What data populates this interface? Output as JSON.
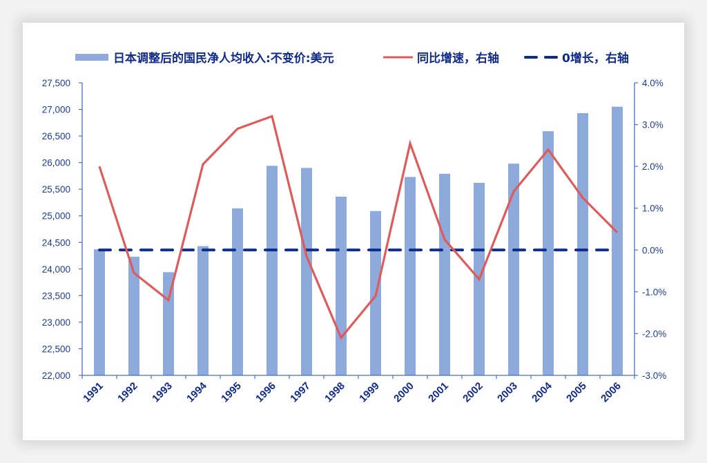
{
  "colors": {
    "bar": "#8eaadb",
    "growth_line": "#e05a5a",
    "zero_line": "#0a2d8c",
    "axis": "#4a6cc4",
    "text": "#0f2a8a",
    "background": "#f2f2f2",
    "card": "#ffffff"
  },
  "legend": {
    "items": [
      {
        "label": "日本调整后的国民净人均收入:不变价:美元",
        "type": "bar"
      },
      {
        "label": "同比增速，右轴",
        "type": "line"
      },
      {
        "label": "0增长，右轴",
        "type": "dashed"
      }
    ]
  },
  "axes": {
    "left_ticks": [
      "27,500",
      "27,000",
      "26,500",
      "26,000",
      "25,500",
      "25,000",
      "24,500",
      "24,000",
      "23,500",
      "23,000",
      "22,500",
      "22,000"
    ],
    "right_ticks": [
      "4.0%",
      "3.0%",
      "2.0%",
      "1.0%",
      "0.0%",
      "-1.0%",
      "-2.0%",
      "-3.0%"
    ],
    "x_ticks": [
      "1991",
      "1992",
      "1993",
      "1994",
      "1995",
      "1996",
      "1997",
      "1998",
      "1999",
      "2000",
      "2001",
      "2002",
      "2003",
      "2004",
      "2005",
      "2006"
    ]
  },
  "chart_data": {
    "type": "bar",
    "title": "",
    "xlabel": "",
    "ylabel": "",
    "categories": [
      "1991",
      "1992",
      "1993",
      "1994",
      "1995",
      "1996",
      "1997",
      "1998",
      "1999",
      "2000",
      "2001",
      "2002",
      "2003",
      "2004",
      "2005",
      "2006"
    ],
    "series": [
      {
        "name": "日本调整后的国民净人均收入:不变价:美元",
        "type": "bar",
        "axis": "left",
        "values": [
          24370,
          24230,
          23940,
          24430,
          25140,
          25940,
          25900,
          25360,
          25090,
          25730,
          25790,
          25620,
          25980,
          26590,
          26930,
          27050
        ]
      },
      {
        "name": "同比增速，右轴",
        "type": "line",
        "axis": "right",
        "unit": "%",
        "values": [
          2.0,
          -0.55,
          -1.2,
          2.05,
          2.9,
          3.2,
          -0.15,
          -2.1,
          -1.1,
          2.55,
          0.25,
          -0.7,
          1.4,
          2.4,
          1.25,
          0.42
        ]
      },
      {
        "name": "0增长，右轴",
        "type": "line",
        "style": "dashed",
        "axis": "right",
        "unit": "%",
        "values": [
          0,
          0,
          0,
          0,
          0,
          0,
          0,
          0,
          0,
          0,
          0,
          0,
          0,
          0,
          0,
          0
        ]
      }
    ],
    "ylim": [
      22000,
      27500
    ],
    "y2lim": [
      -3.0,
      4.0
    ],
    "grid": false,
    "legend_position": "top"
  }
}
